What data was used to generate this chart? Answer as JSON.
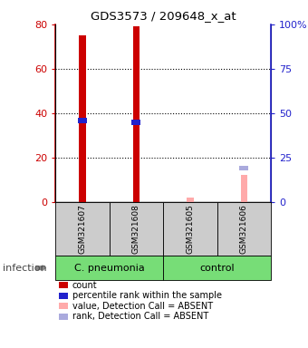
{
  "title": "GDS3573 / 209648_x_at",
  "samples": [
    "GSM321607",
    "GSM321608",
    "GSM321605",
    "GSM321606"
  ],
  "count_values": [
    75,
    79,
    0,
    0
  ],
  "percentile_values": [
    46,
    45,
    0,
    0
  ],
  "absent_value_values": [
    0,
    0,
    2,
    12
  ],
  "absent_rank_values": [
    0,
    0,
    0,
    19
  ],
  "ylim_left": [
    0,
    80
  ],
  "ylim_right": [
    0,
    100
  ],
  "yticks_left": [
    0,
    20,
    40,
    60,
    80
  ],
  "yticks_right": [
    0,
    25,
    50,
    75,
    100
  ],
  "ytick_right_labels": [
    "0",
    "25",
    "50",
    "75",
    "100%"
  ],
  "count_color": "#CC0000",
  "percentile_color": "#2222CC",
  "absent_value_color": "#FFAAAA",
  "absent_rank_color": "#AAAADD",
  "legend_items": [
    {
      "label": "count",
      "color": "#CC0000"
    },
    {
      "label": "percentile rank within the sample",
      "color": "#2222CC"
    },
    {
      "label": "value, Detection Call = ABSENT",
      "color": "#FFAAAA"
    },
    {
      "label": "rank, Detection Call = ABSENT",
      "color": "#AAAADD"
    }
  ],
  "infection_label": "infection",
  "group_defs": [
    {
      "name": "C. pneumonia",
      "span": [
        0,
        1
      ],
      "color": "#77DD77"
    },
    {
      "name": "control",
      "span": [
        2,
        3
      ],
      "color": "#77DD77"
    }
  ],
  "left_axis_color": "#CC0000",
  "right_axis_color": "#2222CC",
  "bar_width": 0.12,
  "pct_bar_height": 3.0,
  "absent_rank_bar_height": 3.0,
  "grid_lines": [
    20,
    40,
    60
  ]
}
